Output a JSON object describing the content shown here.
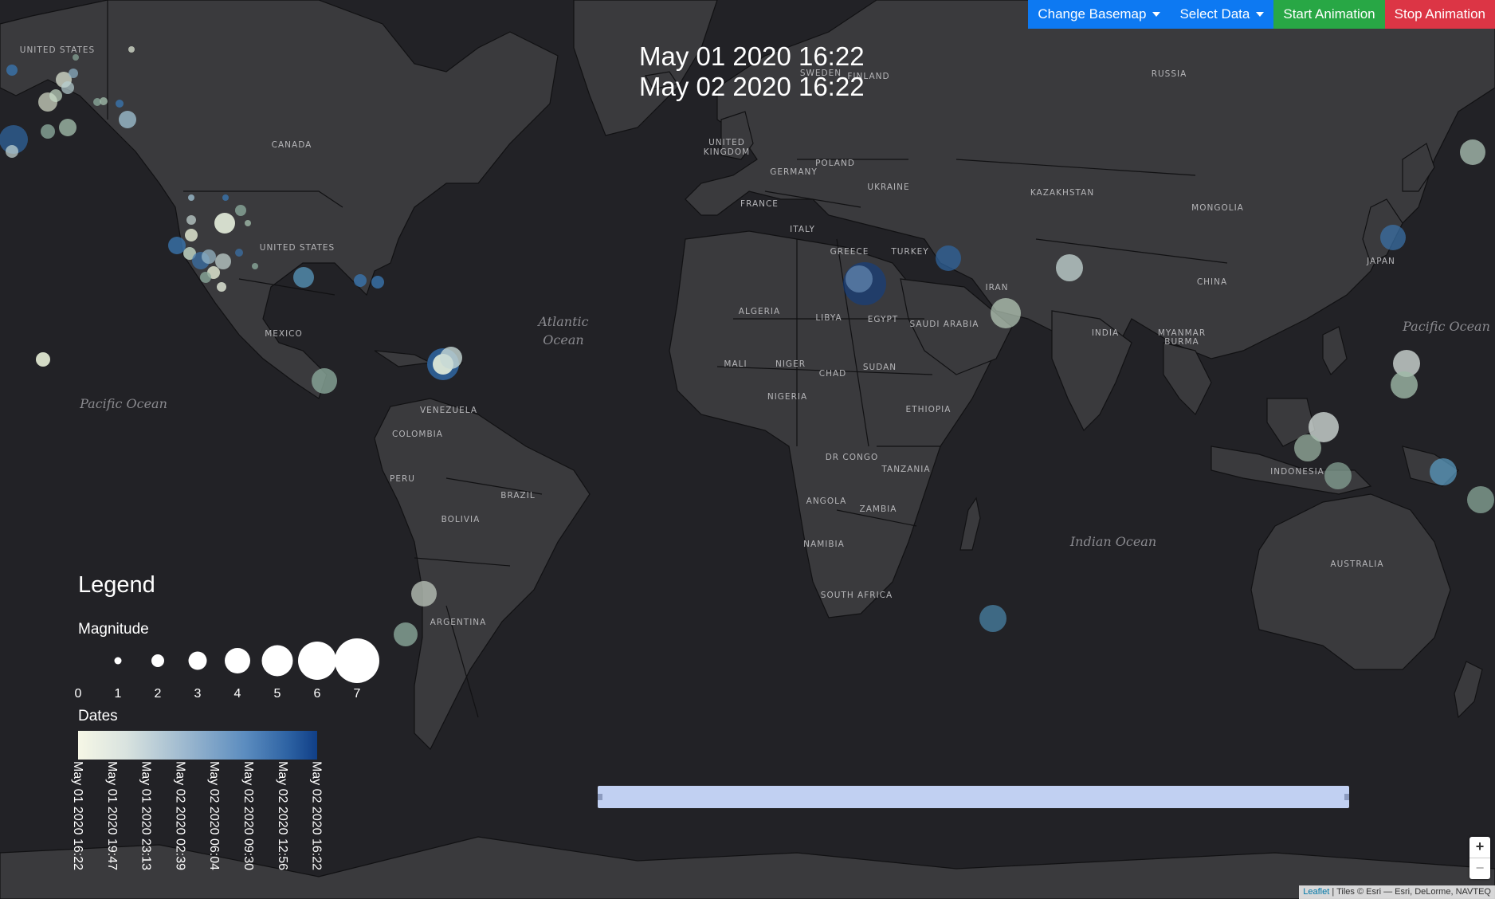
{
  "toolbar": {
    "basemap_label": "Change Basemap",
    "data_label": "Select Data",
    "start_label": "Start Animation",
    "stop_label": "Stop Animation"
  },
  "time_range": {
    "start": "May 01 2020 16:22",
    "end": "May 02 2020 16:22"
  },
  "legend": {
    "title": "Legend",
    "magnitude_title": "Magnitude",
    "magnitude_ticks": [
      "0",
      "1",
      "2",
      "3",
      "4",
      "5",
      "6",
      "7"
    ],
    "dates_title": "Dates",
    "date_ticks": [
      "May 01 2020 16:22",
      "May 01 2020 19:47",
      "May 01 2020 23:13",
      "May 02 2020 02:39",
      "May 02 2020 06:04",
      "May 02 2020 09:30",
      "May 02 2020 12:56",
      "May 02 2020 16:22"
    ],
    "color_scale": [
      "#f6f7e6",
      "#d9e3df",
      "#9cb8cf",
      "#5b8cbf",
      "#2d62a3",
      "#103f87"
    ]
  },
  "map_labels": {
    "oceans": [
      "Atlantic",
      "Ocean",
      "Pacific Ocean",
      "Pacific Ocean",
      "Indian Ocean"
    ],
    "countries": [
      "UNITED STATES",
      "CANADA",
      "UNITED STATES",
      "MEXICO",
      "VENEZUELA",
      "COLOMBIA",
      "PERU",
      "BRAZIL",
      "BOLIVIA",
      "ARGENTINA",
      "SWEDEN",
      "FINLAND",
      "RUSSIA",
      "UNITED",
      "KINGDOM",
      "GERMANY",
      "POLAND",
      "UKRAINE",
      "FRANCE",
      "ITALY",
      "GREECE",
      "TURKEY",
      "KAZAKHSTAN",
      "MONGOLIA",
      "ALGERIA",
      "LIBYA",
      "EGYPT",
      "SAUDI ARABIA",
      "IRAN",
      "INDIA",
      "CHINA",
      "JAPAN",
      "MYANMAR",
      "BURMA",
      "MALI",
      "NIGER",
      "CHAD",
      "SUDAN",
      "NIGERIA",
      "ETHIOPIA",
      "DR CONGO",
      "TANZANIA",
      "ANGOLA",
      "ZAMBIA",
      "NAMIBIA",
      "SOUTH AFRICA",
      "INDONESIA",
      "AUSTRALIA"
    ]
  },
  "attribution": {
    "link": "Leaflet",
    "text": "| Tiles © Esri — Esri, DeLorme, NAVTEQ"
  },
  "zoom": {
    "in": "+",
    "out": "−"
  },
  "colors": {
    "land": "#3a3a3d",
    "ocean": "#222226",
    "border": "#111113"
  }
}
